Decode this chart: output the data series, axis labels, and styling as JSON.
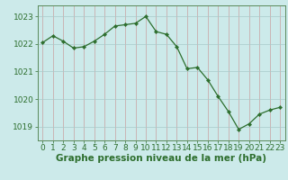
{
  "x": [
    0,
    1,
    2,
    3,
    4,
    5,
    6,
    7,
    8,
    9,
    10,
    11,
    12,
    13,
    14,
    15,
    16,
    17,
    18,
    19,
    20,
    21,
    22,
    23
  ],
  "y": [
    1022.05,
    1022.3,
    1022.1,
    1021.85,
    1021.9,
    1022.1,
    1022.35,
    1022.65,
    1022.7,
    1022.75,
    1023.0,
    1022.45,
    1022.35,
    1021.9,
    1021.1,
    1021.15,
    1020.7,
    1020.1,
    1019.55,
    1018.9,
    1019.1,
    1019.45,
    1019.6,
    1019.7
  ],
  "line_color": "#2d6e2d",
  "marker_color": "#2d6e2d",
  "bg_color": "#cceaea",
  "grid_color_v": "#c8a0a0",
  "grid_color_h": "#a8caca",
  "xlabel": "Graphe pression niveau de la mer (hPa)",
  "ylim": [
    1018.5,
    1023.4
  ],
  "yticks": [
    1019,
    1020,
    1021,
    1022,
    1023
  ],
  "xticks": [
    0,
    1,
    2,
    3,
    4,
    5,
    6,
    7,
    8,
    9,
    10,
    11,
    12,
    13,
    14,
    15,
    16,
    17,
    18,
    19,
    20,
    21,
    22,
    23
  ],
  "tick_label_color": "#2d6e2d",
  "xlabel_color": "#2d6e2d",
  "xlabel_fontsize": 7.5,
  "tick_fontsize": 6.5,
  "spine_color": "#5a8a5a"
}
